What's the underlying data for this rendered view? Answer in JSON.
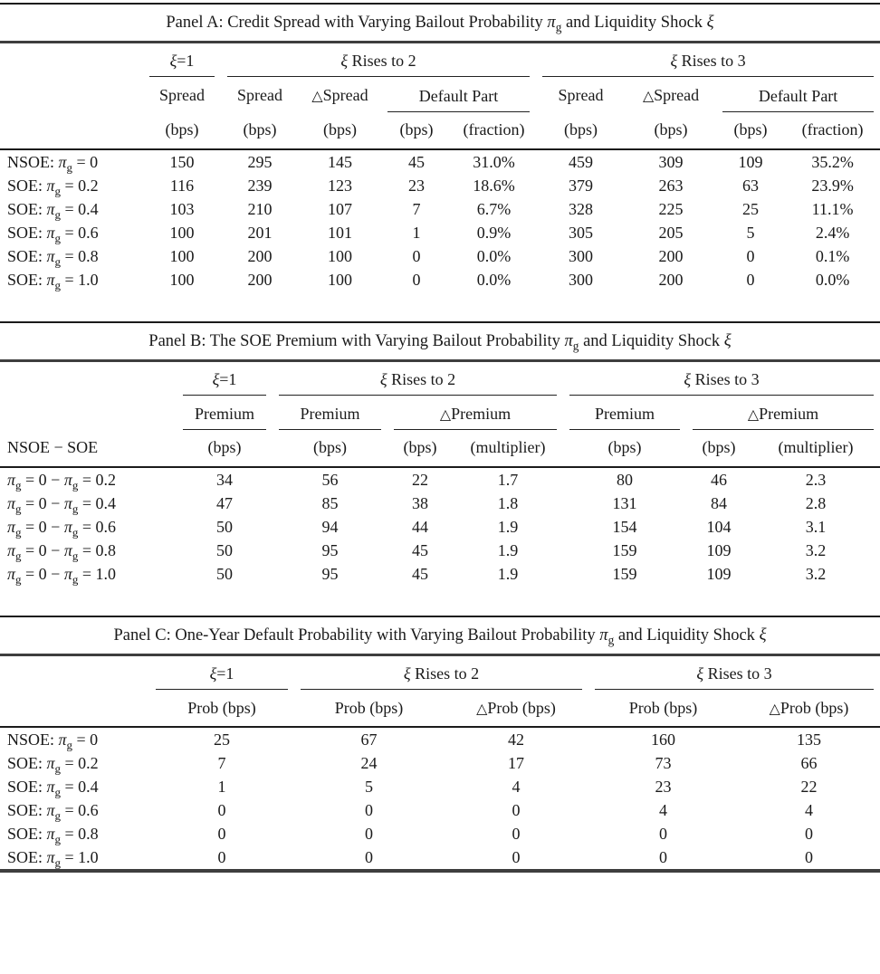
{
  "panels": [
    {
      "id": "panel-a",
      "title": "Panel A: Credit Spread with Varying Bailout Probability π_g and Liquidity Shock ξ",
      "groups": [
        "ξ=1",
        "ξ Rises to 2",
        "ξ Rises to 3"
      ],
      "sub": [
        "Spread",
        "Spread",
        "△Spread",
        "Default Part",
        "Spread",
        "△Spread",
        "Default Part"
      ],
      "units": [
        "(bps)",
        "(bps)",
        "(bps)",
        "(bps)",
        "(fraction)",
        "(bps)",
        "(bps)",
        "(bps)",
        "(fraction)"
      ],
      "stub_label": "",
      "rows": [
        {
          "label": "NSOE: π_g = 0",
          "values": [
            "150",
            "295",
            "145",
            "45",
            "31.0%",
            "459",
            "309",
            "109",
            "35.2%"
          ]
        },
        {
          "label": "SOE: π_g = 0.2",
          "values": [
            "116",
            "239",
            "123",
            "23",
            "18.6%",
            "379",
            "263",
            "63",
            "23.9%"
          ]
        },
        {
          "label": "SOE: π_g = 0.4",
          "values": [
            "103",
            "210",
            "107",
            "7",
            "6.7%",
            "328",
            "225",
            "25",
            "11.1%"
          ]
        },
        {
          "label": "SOE: π_g = 0.6",
          "values": [
            "100",
            "201",
            "101",
            "1",
            "0.9%",
            "305",
            "205",
            "5",
            "2.4%"
          ]
        },
        {
          "label": "SOE: π_g = 0.8",
          "values": [
            "100",
            "200",
            "100",
            "0",
            "0.0%",
            "300",
            "200",
            "0",
            "0.1%"
          ]
        },
        {
          "label": "SOE: π_g = 1.0",
          "values": [
            "100",
            "200",
            "100",
            "0",
            "0.0%",
            "300",
            "200",
            "0",
            "0.0%"
          ]
        }
      ]
    },
    {
      "id": "panel-b",
      "title": "Panel B: The SOE Premium with Varying Bailout Probability π_g and Liquidity Shock ξ",
      "groups": [
        "ξ=1",
        "ξ Rises to 2",
        "ξ Rises to 3"
      ],
      "sub": [
        "Premium",
        "Premium",
        "△Premium",
        "Premium",
        "△Premium"
      ],
      "units": [
        "(bps)",
        "(bps)",
        "(bps)",
        "(multiplier)",
        "(bps)",
        "(bps)",
        "(multiplier)"
      ],
      "stub_label": "NSOE − SOE",
      "rows": [
        {
          "label": "π_g = 0 − π_g = 0.2",
          "values": [
            "34",
            "56",
            "22",
            "1.7",
            "80",
            "46",
            "2.3"
          ]
        },
        {
          "label": "π_g = 0 − π_g = 0.4",
          "values": [
            "47",
            "85",
            "38",
            "1.8",
            "131",
            "84",
            "2.8"
          ]
        },
        {
          "label": "π_g = 0 − π_g = 0.6",
          "values": [
            "50",
            "94",
            "44",
            "1.9",
            "154",
            "104",
            "3.1"
          ]
        },
        {
          "label": "π_g = 0 − π_g = 0.8",
          "values": [
            "50",
            "95",
            "45",
            "1.9",
            "159",
            "109",
            "3.2"
          ]
        },
        {
          "label": "π_g = 0 − π_g = 1.0",
          "values": [
            "50",
            "95",
            "45",
            "1.9",
            "159",
            "109",
            "3.2"
          ]
        }
      ]
    },
    {
      "id": "panel-c",
      "title": "Panel C: One-Year Default Probability with Varying Bailout Probability π_g and Liquidity Shock ξ",
      "groups": [
        "ξ=1",
        "ξ Rises to 2",
        "ξ Rises to 3"
      ],
      "sub": [
        "Prob (bps)",
        "Prob (bps)",
        "△Prob (bps)",
        "Prob (bps)",
        "△Prob (bps)"
      ],
      "units": [],
      "stub_label": "",
      "rows": [
        {
          "label": "NSOE: π_g = 0",
          "values": [
            "25",
            "67",
            "42",
            "160",
            "135"
          ]
        },
        {
          "label": "SOE: π_g = 0.2",
          "values": [
            "7",
            "24",
            "17",
            "73",
            "66"
          ]
        },
        {
          "label": "SOE: π_g = 0.4",
          "values": [
            "1",
            "5",
            "4",
            "23",
            "22"
          ]
        },
        {
          "label": "SOE: π_g = 0.6",
          "values": [
            "0",
            "0",
            "0",
            "4",
            "4"
          ]
        },
        {
          "label": "SOE: π_g = 0.8",
          "values": [
            "0",
            "0",
            "0",
            "0",
            "0"
          ]
        },
        {
          "label": "SOE: π_g = 1.0",
          "values": [
            "0",
            "0",
            "0",
            "0",
            "0"
          ]
        }
      ]
    }
  ]
}
